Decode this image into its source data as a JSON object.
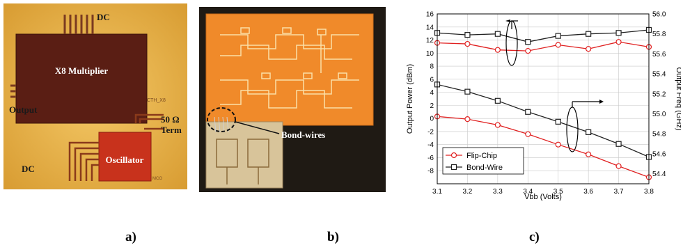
{
  "panel_a": {
    "caption": "a)",
    "labels": {
      "dc_top": "DC",
      "multiplier": "X8 Multiplier",
      "output": "Output",
      "term_ohm": "50 Ω",
      "term": "Term",
      "oscillator": "Oscillator",
      "dc_bottom": "DC",
      "chip_id": "CTH_X8",
      "mco": "MCO"
    },
    "colors": {
      "background": "#e8b54a",
      "multiplier": "#5a1e14",
      "oscillator": "#c8321c"
    }
  },
  "panel_b": {
    "caption": "b)",
    "labels": {
      "bond_wires": "Bond-wires"
    },
    "colors": {
      "chip": "#f08a2a",
      "background": "#1f1a14"
    }
  },
  "panel_c": {
    "caption": "c)"
  },
  "chart_data": {
    "type": "line",
    "xlabel": "Vbb (Volts)",
    "ylabel": "Output Power (dBm)",
    "ylabel_right": "Output Freq (GHz)",
    "x": [
      3.1,
      3.2,
      3.3,
      3.4,
      3.5,
      3.6,
      3.7,
      3.8
    ],
    "xlim": [
      3.1,
      3.8
    ],
    "ylim": [
      -10,
      16
    ],
    "ylim_right": [
      54.3,
      56.0
    ],
    "x_ticks": [
      "3.1",
      "3.2",
      "3.3",
      "3.4",
      "3.5",
      "3.6",
      "3.7",
      "3.8"
    ],
    "y_ticks": [
      "16",
      "14",
      "12",
      "10",
      "8",
      "6",
      "4",
      "2",
      "0",
      "-2",
      "-4",
      "-6",
      "-8"
    ],
    "y_ticks_right": [
      "56.0",
      "55.8",
      "55.6",
      "55.4",
      "55.2",
      "55.0",
      "54.8",
      "54.6",
      "54.4"
    ],
    "grid": true,
    "legend_position": "bottom-left",
    "series": [
      {
        "name": "Flip-Chip",
        "axis": "left",
        "color": "#e02020",
        "marker": "circle",
        "values": [
          0.3,
          -0.1,
          -1.0,
          -2.4,
          -4.0,
          -5.5,
          -7.3,
          -9.0
        ]
      },
      {
        "name": "Bond-Wire",
        "axis": "left",
        "color": "#222222",
        "marker": "square",
        "values": [
          5.2,
          4.1,
          2.7,
          1.0,
          -0.5,
          -2.1,
          -3.9,
          -5.9
        ]
      },
      {
        "name": "Flip-Chip",
        "axis": "right",
        "color": "#e02020",
        "marker": "circle",
        "legend": false,
        "values": [
          55.71,
          55.7,
          55.64,
          55.63,
          55.69,
          55.65,
          55.72,
          55.67
        ]
      },
      {
        "name": "Bond-Wire",
        "axis": "right",
        "color": "#222222",
        "marker": "square",
        "legend": false,
        "values": [
          55.81,
          55.79,
          55.8,
          55.72,
          55.78,
          55.8,
          55.81,
          55.84
        ]
      }
    ]
  }
}
